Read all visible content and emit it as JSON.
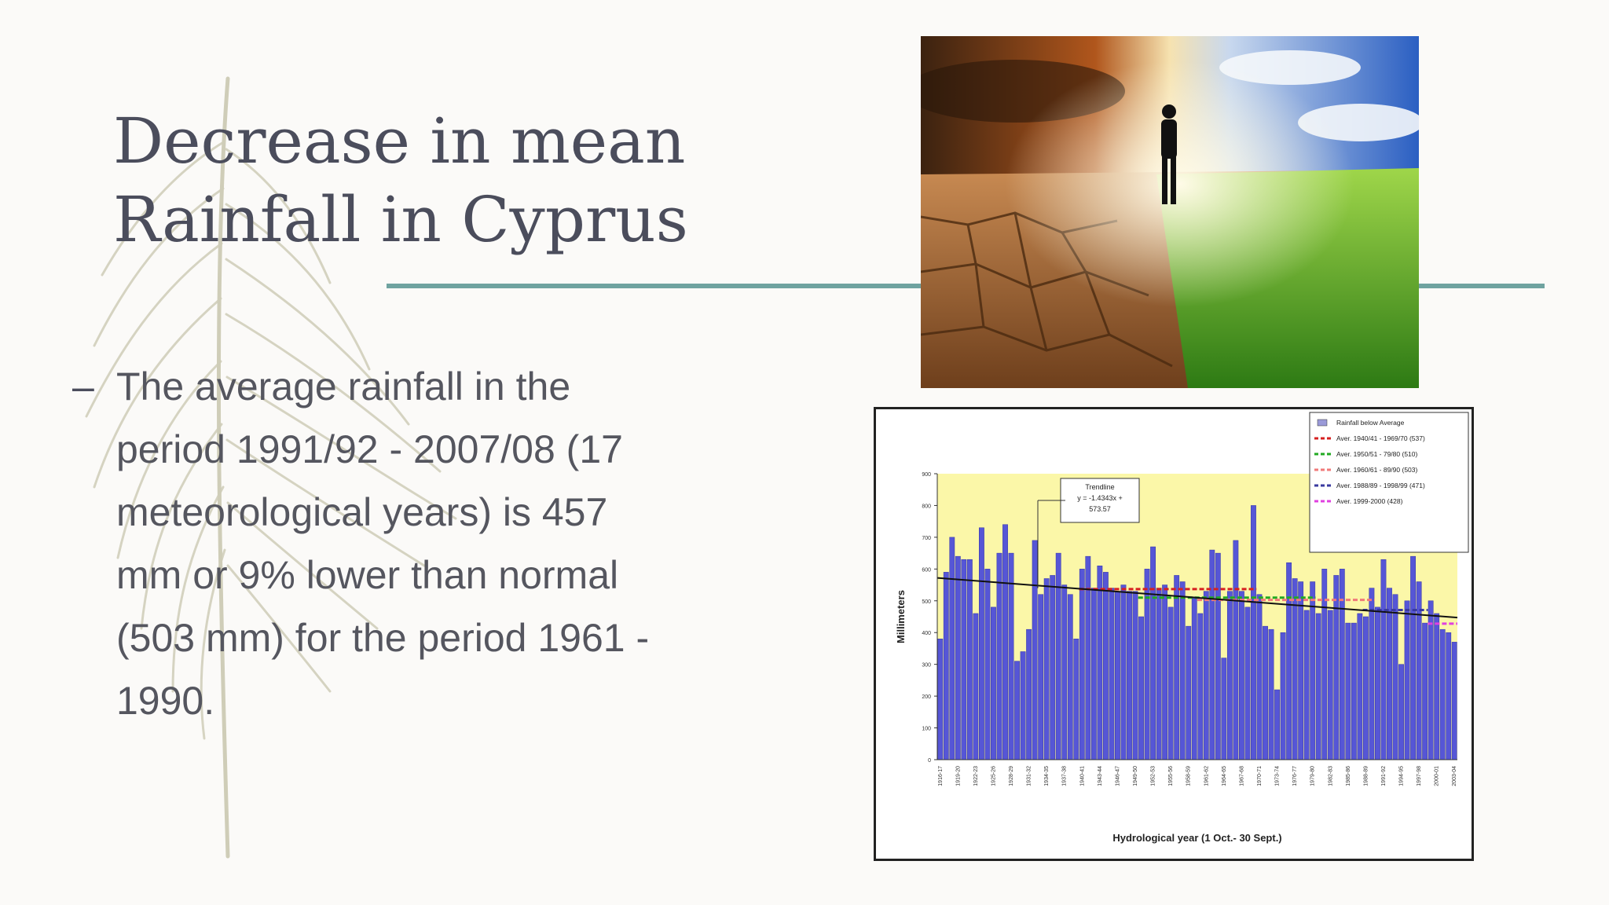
{
  "slide": {
    "title": "Decrease in mean\nRainfall in Cyprus",
    "bullet_marker": "–",
    "bullet_text": "The average rainfall in the period 1991/92 - 2007/08 (17 meteorological years) is 457 mm or 9% lower than normal (503 mm) for the period 1961 - 1990."
  },
  "colors": {
    "title": "#4b4d5c",
    "rule": "#6fa3a0",
    "bar": "#5656d6",
    "plot_bg": "#fbf7a8"
  },
  "photo": {
    "icon": "drought-vs-green-field-photo"
  },
  "chart_data": {
    "type": "bar",
    "xlabel": "Hydrological year (1 Oct.- 30 Sept.)",
    "ylabel": "Millimeters",
    "ylim": [
      0,
      900
    ],
    "yticks": [
      0,
      100,
      200,
      300,
      400,
      500,
      600,
      700,
      800,
      900
    ],
    "x_start_year": 1916,
    "values": [
      380,
      590,
      700,
      640,
      630,
      630,
      460,
      730,
      600,
      480,
      650,
      740,
      650,
      310,
      340,
      410,
      690,
      520,
      570,
      580,
      650,
      550,
      520,
      380,
      600,
      640,
      540,
      610,
      590,
      540,
      530,
      550,
      530,
      530,
      450,
      600,
      670,
      540,
      550,
      480,
      580,
      560,
      420,
      510,
      460,
      530,
      660,
      650,
      320,
      530,
      690,
      530,
      480,
      800,
      520,
      420,
      410,
      220,
      400,
      620,
      570,
      560,
      470,
      560,
      460,
      600,
      470,
      580,
      600,
      430,
      430,
      460,
      450,
      540,
      480,
      630,
      540,
      520,
      300,
      500,
      640,
      560,
      430,
      500,
      460,
      410,
      400,
      370
    ],
    "trendline_label": "Trendline\ny = -1.4343x +\n573.57",
    "trend": [
      573.57,
      -1.4343
    ],
    "legend_placement": "top-right",
    "legend": [
      "Rainfall below Average",
      "Aver. 1940/41 - 1969/70 (537)",
      "Aver. 1950/51 - 79/80 (510)",
      "Aver. 1960/61 - 89/90 (503)",
      "Aver. 1988/89 - 1998/99 (471)",
      "Aver. 1999-2000 (428)"
    ],
    "legend_colors": [
      "#9a9ad8",
      "#d62020",
      "#22aa22",
      "#f07a7a",
      "#3a3aa0",
      "#e040e0"
    ],
    "averages": [
      {
        "value": 537,
        "from": 24,
        "to": 53,
        "color": "#d62020"
      },
      {
        "value": 510,
        "from": 34,
        "to": 63,
        "color": "#22aa22"
      },
      {
        "value": 503,
        "from": 44,
        "to": 73,
        "color": "#f07a7a"
      },
      {
        "value": 471,
        "from": 72,
        "to": 82,
        "color": "#3a3aa0"
      },
      {
        "value": 428,
        "from": 83,
        "to": 87,
        "color": "#e040e0"
      }
    ]
  }
}
